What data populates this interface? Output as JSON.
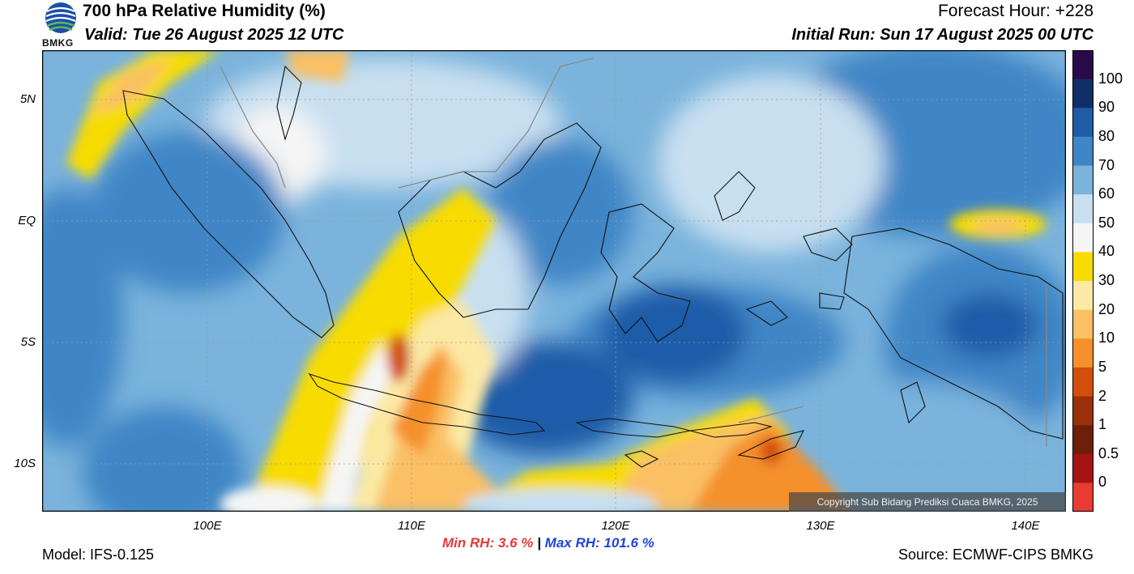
{
  "header": {
    "title": "700 hPa Relative Humidity (%)",
    "valid": "Valid: Tue 26 August 2025 12 UTC",
    "forecast_hour": "Forecast Hour: +228",
    "initial_run": "Initial Run: Sun 17 August 2025 00 UTC",
    "logo_text": "BMKG"
  },
  "axes": {
    "lat_labels": [
      "5N",
      "EQ",
      "5S",
      "10S"
    ],
    "lon_labels": [
      "100E",
      "110E",
      "120E",
      "130E",
      "140E"
    ]
  },
  "colorbar": {
    "labels": [
      "100",
      "90",
      "80",
      "70",
      "60",
      "50",
      "40",
      "30",
      "20",
      "10",
      "5",
      "2",
      "1",
      "0.5",
      "0"
    ],
    "colors": [
      "#2a0a4a",
      "#0f2f66",
      "#1f5ca8",
      "#3f86c6",
      "#7ab3dc",
      "#c8dff0",
      "#f5f5f5",
      "#f8dc00",
      "#fbe9a4",
      "#fac063",
      "#f5902b",
      "#d24e0b",
      "#9a300a",
      "#6d1f09",
      "#a51414",
      "#e83b32"
    ]
  },
  "stats": {
    "min_label": "Min RH:",
    "min_value": "3.6 %",
    "separator": "|",
    "max_label": "Max RH:",
    "max_value": "101.6 %"
  },
  "footer": {
    "model": "Model: IFS-0.125",
    "source": "Source: ECMWF-CIPS BMKG",
    "copyright": "Copyright Sub Bidang Prediksi Cuaca BMKG, 2025"
  }
}
